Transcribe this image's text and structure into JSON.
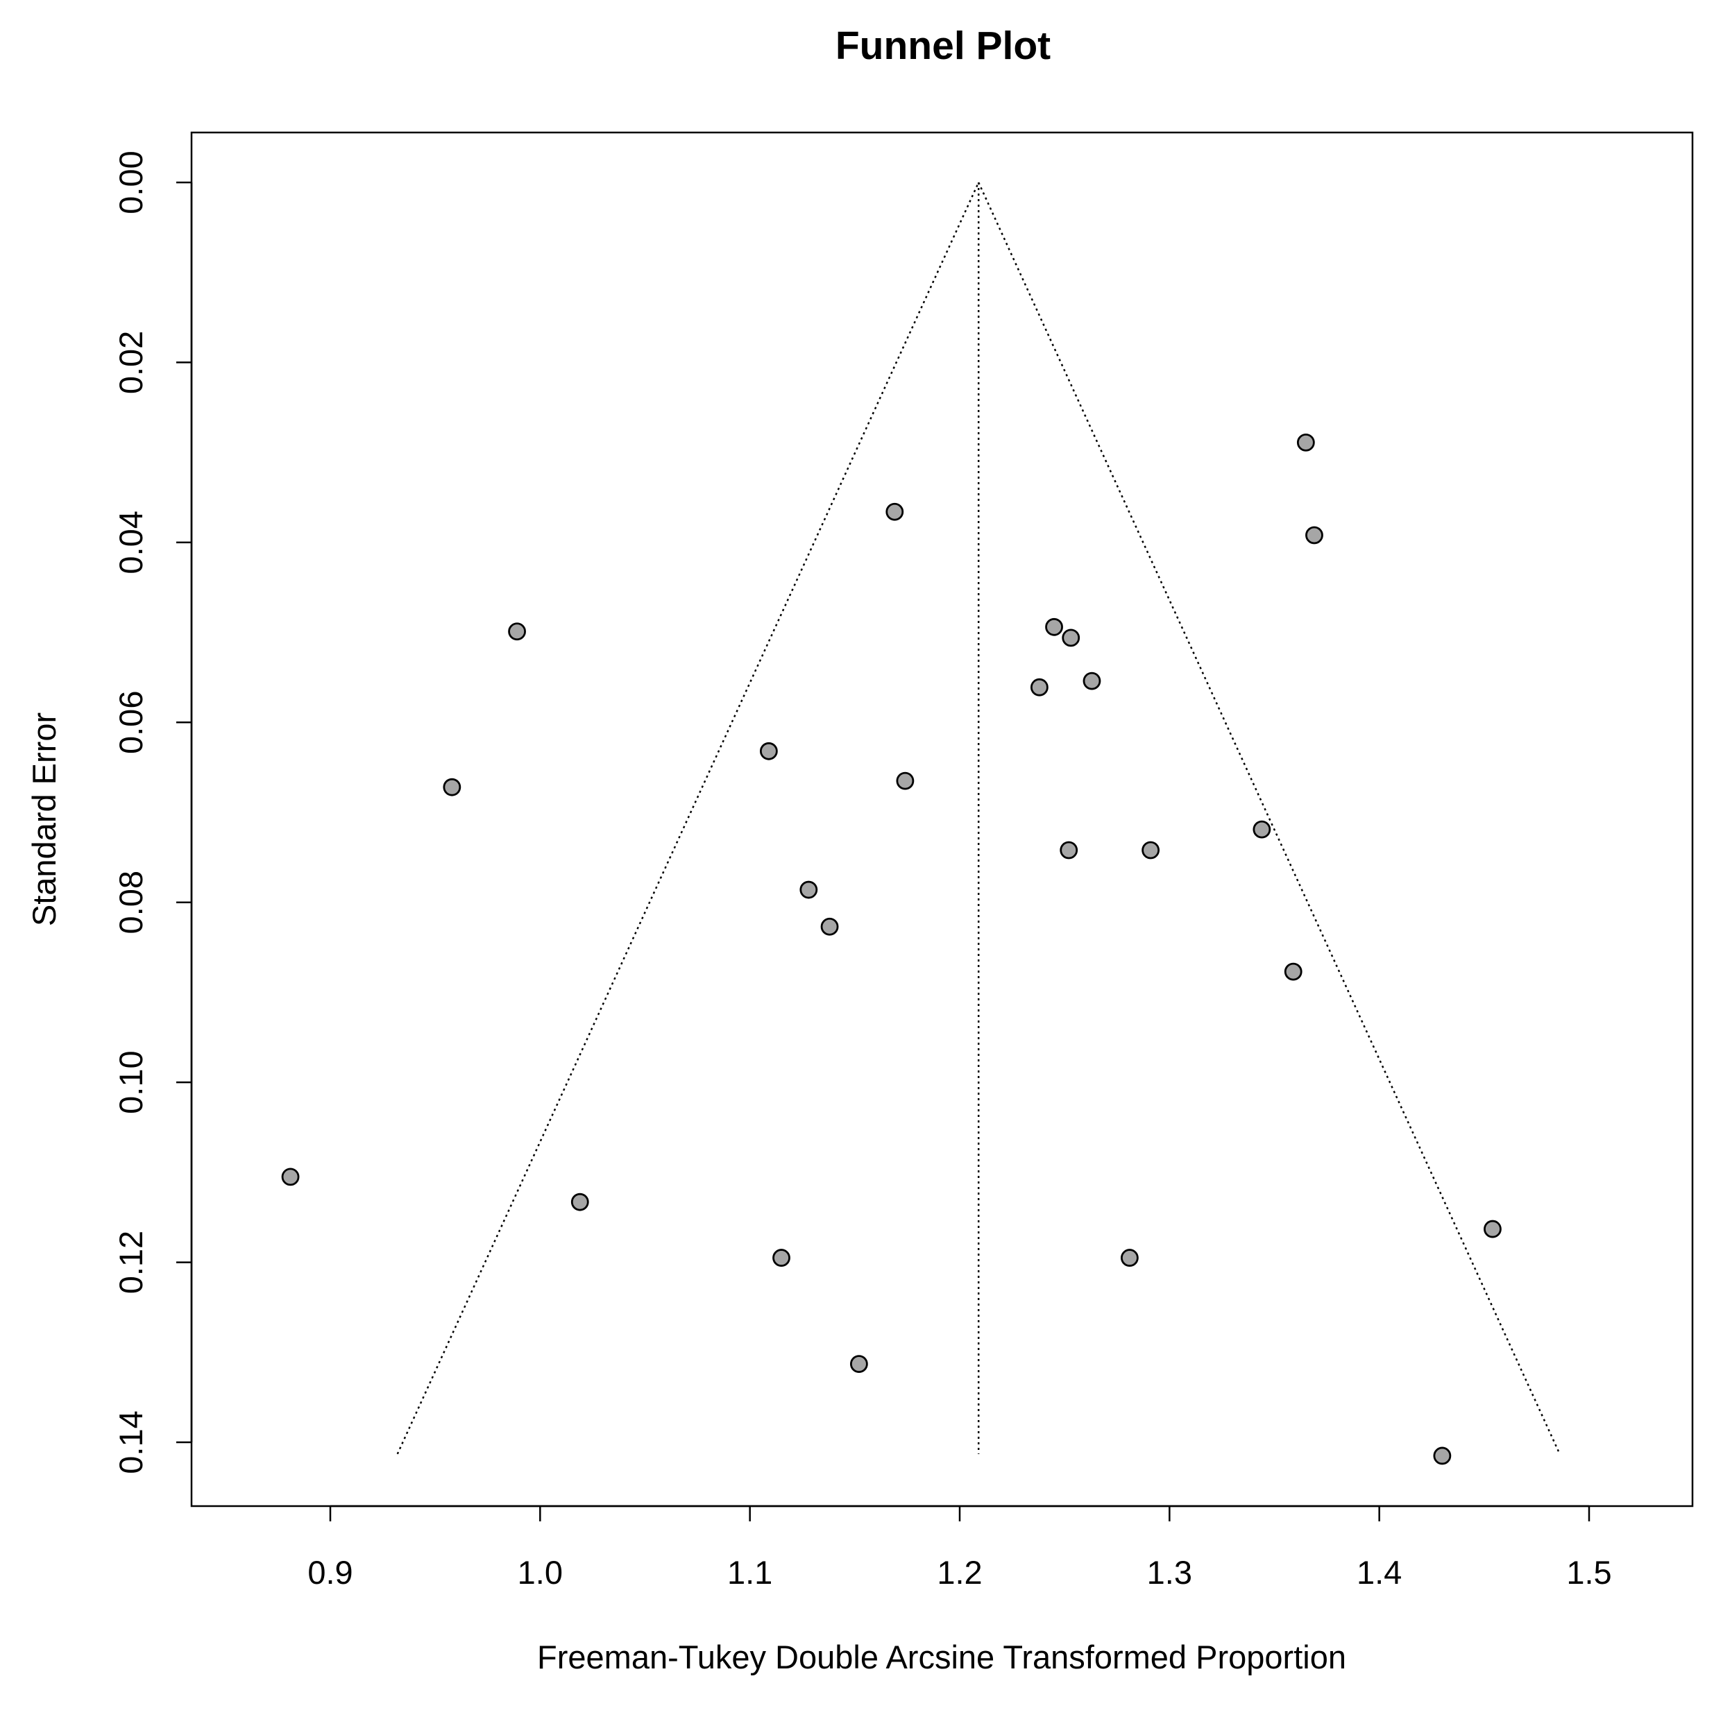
{
  "chart_data": {
    "type": "scatter",
    "title": "Funnel Plot",
    "xlabel": "Freeman-Tukey Double Arcsine Transformed Proportion",
    "ylabel": "Standard Error",
    "xlim": [
      0.835,
      1.5325
    ],
    "ylim": [
      0,
      0.14
    ],
    "y_reversed": true,
    "x_ticks": [
      0.9,
      1.0,
      1.1,
      1.2,
      1.3,
      1.4,
      1.5
    ],
    "x_tick_labels": [
      "0.9",
      "1.0",
      "1.1",
      "1.2",
      "1.3",
      "1.4",
      "1.5"
    ],
    "y_ticks": [
      0.0,
      0.02,
      0.04,
      0.06,
      0.08,
      0.1,
      0.12,
      0.14
    ],
    "y_tick_labels": [
      "0.00",
      "0.02",
      "0.04",
      "0.06",
      "0.08",
      "0.10",
      "0.12",
      "0.14"
    ],
    "grid": false,
    "pooled_estimate": 1.209,
    "funnel": {
      "apex": [
        1.209,
        0.0
      ],
      "base_se": 0.1413,
      "base_left": 0.932,
      "base_right": 1.486
    },
    "points": [
      {
        "x": 1.365,
        "y": 0.0289
      },
      {
        "x": 1.369,
        "y": 0.0392
      },
      {
        "x": 1.169,
        "y": 0.0366
      },
      {
        "x": 0.989,
        "y": 0.0499
      },
      {
        "x": 1.245,
        "y": 0.0494
      },
      {
        "x": 1.253,
        "y": 0.0506
      },
      {
        "x": 1.238,
        "y": 0.0561
      },
      {
        "x": 1.263,
        "y": 0.0554
      },
      {
        "x": 1.109,
        "y": 0.0632
      },
      {
        "x": 1.174,
        "y": 0.0665
      },
      {
        "x": 0.958,
        "y": 0.0672
      },
      {
        "x": 1.344,
        "y": 0.0719
      },
      {
        "x": 1.252,
        "y": 0.0742
      },
      {
        "x": 1.291,
        "y": 0.0742
      },
      {
        "x": 1.128,
        "y": 0.0786
      },
      {
        "x": 1.138,
        "y": 0.0827
      },
      {
        "x": 1.359,
        "y": 0.0877
      },
      {
        "x": 0.881,
        "y": 0.1105
      },
      {
        "x": 1.019,
        "y": 0.1133
      },
      {
        "x": 1.454,
        "y": 0.1163
      },
      {
        "x": 1.115,
        "y": 0.1195
      },
      {
        "x": 1.281,
        "y": 0.1195
      },
      {
        "x": 1.152,
        "y": 0.1313
      },
      {
        "x": 1.43,
        "y": 0.1415
      }
    ]
  }
}
